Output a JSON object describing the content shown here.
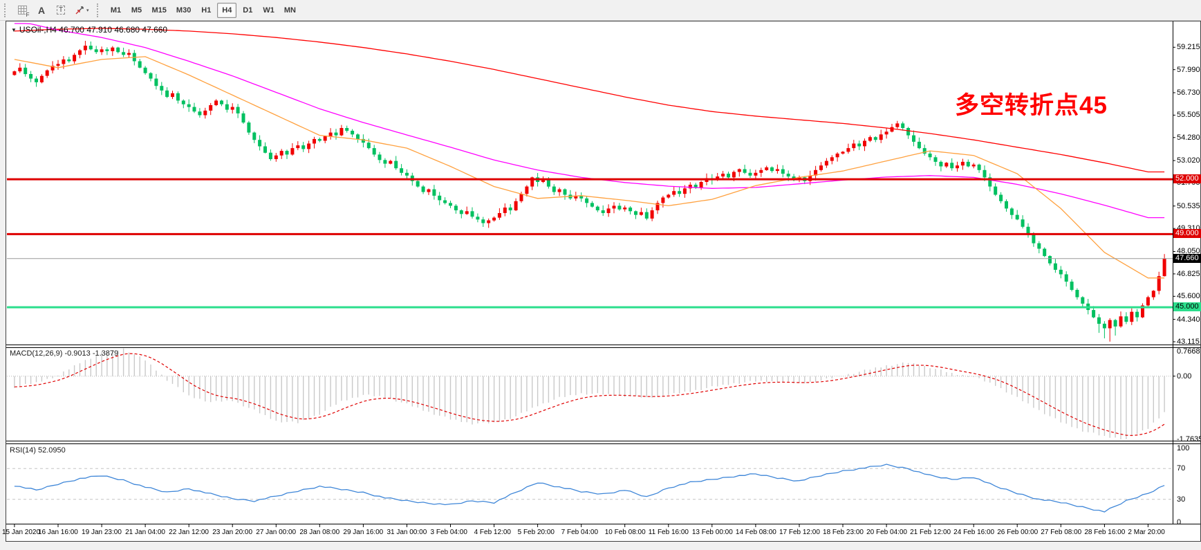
{
  "toolbar": {
    "f_label": "F",
    "a_label": "A",
    "t_label": "T",
    "caret": "▾",
    "timeframes": [
      "M1",
      "M5",
      "M15",
      "M30",
      "H1",
      "H4",
      "D1",
      "W1",
      "MN"
    ],
    "active_timeframe": "H4"
  },
  "chart": {
    "dropdown_arrow": "▼",
    "symbol_period": "USOil-,H4",
    "ohlc_text": "46.700 47.910 46.680 47.660"
  },
  "annotation": {
    "text": "多空转折点45",
    "color": "#FF0000"
  },
  "indicators": {
    "macd": {
      "label": "MACD(12,26,9) -0.9013 -1.3879",
      "axis_labels": [
        "0.7668",
        "0.00",
        "-1.7635"
      ]
    },
    "rsi": {
      "label": "RSI(14) 52.0950",
      "axis_labels": [
        "100",
        "70",
        "30",
        "0"
      ]
    }
  },
  "colors": {
    "candle_up": "#F00000",
    "candle_down": "#00C060",
    "ma_slow": "#FF0000",
    "ma_mid": "#FF00FF",
    "ma_fast": "#FFA13F",
    "level_red": "#DE0000",
    "level_green": "#2BDE8C",
    "current_line": "#9A9A9A",
    "macd_hist": "#C9C9C9",
    "macd_signal": "#E00000",
    "rsi_line": "#3E86D8",
    "panel_bg": "#FFFFFF",
    "chrome_bg": "#F1F1F1"
  },
  "chart_data": {
    "type": "candlestick",
    "symbol": "USOil",
    "period": "H4",
    "up_means": "red (Chinese convention)",
    "price_ticks": [
      "59.215",
      "57.990",
      "56.730",
      "55.505",
      "54.280",
      "53.020",
      "51.795",
      "50.535",
      "49.310",
      "48.050",
      "46.825",
      "45.600",
      "44.340",
      "43.115"
    ],
    "price_view_max": 60.55,
    "price_view_min": 43.0,
    "first_open": 57.7,
    "closes": [
      57.9,
      58.1,
      57.75,
      57.5,
      57.3,
      57.65,
      57.95,
      58.2,
      58.3,
      58.55,
      58.45,
      58.8,
      59.05,
      59.3,
      59.1,
      58.95,
      59.1,
      59.0,
      59.2,
      58.95,
      58.8,
      58.9,
      58.45,
      58.1,
      57.8,
      57.5,
      57.1,
      56.85,
      56.5,
      56.7,
      56.3,
      56.1,
      55.95,
      55.7,
      55.5,
      55.75,
      56.05,
      56.3,
      56.1,
      55.8,
      55.95,
      55.6,
      55.1,
      54.55,
      54.15,
      53.8,
      53.45,
      53.1,
      53.3,
      53.55,
      53.35,
      53.7,
      53.85,
      53.65,
      53.95,
      54.2,
      54.1,
      54.35,
      54.55,
      54.4,
      54.8,
      54.65,
      54.45,
      54.2,
      54.0,
      53.7,
      53.35,
      53.05,
      52.85,
      53.0,
      52.6,
      52.35,
      52.2,
      51.9,
      51.6,
      51.3,
      51.45,
      51.1,
      50.85,
      50.7,
      50.55,
      50.3,
      50.1,
      50.25,
      49.95,
      49.8,
      49.6,
      49.75,
      49.9,
      50.15,
      50.45,
      50.3,
      50.8,
      51.2,
      51.6,
      52.1,
      51.85,
      51.95,
      51.6,
      51.3,
      51.45,
      51.15,
      50.95,
      51.1,
      50.95,
      50.7,
      50.5,
      50.3,
      50.15,
      50.4,
      50.55,
      50.35,
      50.45,
      50.25,
      50.05,
      50.2,
      49.85,
      50.3,
      50.7,
      51.0,
      51.15,
      51.35,
      51.2,
      51.5,
      51.7,
      51.55,
      51.85,
      52.05,
      51.95,
      52.15,
      52.3,
      52.1,
      52.4,
      52.55,
      52.35,
      52.2,
      52.35,
      52.5,
      52.65,
      52.45,
      52.55,
      52.3,
      52.15,
      51.95,
      52.1,
      51.9,
      52.2,
      52.5,
      52.75,
      53.0,
      53.2,
      53.4,
      53.5,
      53.7,
      53.95,
      53.8,
      54.1,
      54.3,
      54.15,
      54.45,
      54.6,
      54.85,
      55.05,
      54.8,
      54.4,
      54.05,
      53.7,
      53.4,
      53.2,
      52.95,
      52.7,
      52.9,
      52.6,
      52.75,
      52.95,
      52.7,
      52.8,
      52.5,
      52.1,
      51.6,
      51.15,
      50.8,
      50.4,
      50.05,
      49.8,
      49.4,
      48.95,
      48.5,
      48.2,
      47.8,
      47.4,
      47.05,
      46.8,
      46.4,
      45.95,
      45.55,
      45.2,
      44.85,
      44.45,
      44.1,
      43.85,
      44.3,
      43.95,
      44.5,
      44.2,
      44.75,
      44.45,
      45.1,
      45.55,
      45.9,
      46.7,
      47.66
    ],
    "last_ohlc": [
      46.7,
      47.91,
      46.68,
      47.66
    ],
    "session_low": 43.12,
    "ma_slow_red": {
      "bar_step": 8,
      "values": [
        60.1,
        60.2,
        60.25,
        60.2,
        60.1,
        59.95,
        59.75,
        59.5,
        59.2,
        58.85,
        58.45,
        58.0,
        57.5,
        57.0,
        56.5,
        56.05,
        55.7,
        55.45,
        55.25,
        55.05,
        54.8,
        54.5,
        54.15,
        53.75,
        53.35,
        52.9,
        52.4
      ]
    },
    "ma_mid_magenta": {
      "bar_step": 8,
      "values": [
        60.7,
        60.15,
        59.75,
        59.2,
        58.45,
        57.65,
        56.75,
        55.85,
        55.1,
        54.42,
        53.75,
        53.05,
        52.5,
        52.1,
        51.82,
        51.62,
        51.5,
        51.55,
        51.75,
        51.95,
        52.12,
        52.2,
        52.1,
        51.72,
        51.2,
        50.58,
        49.9
      ]
    },
    "ma_fast_orange": {
      "bar_step": 8,
      "values": [
        58.55,
        58.1,
        58.55,
        58.7,
        57.7,
        56.6,
        55.5,
        54.4,
        54.15,
        53.7,
        52.7,
        51.6,
        50.95,
        51.1,
        50.85,
        50.55,
        50.9,
        51.65,
        52.1,
        52.45,
        53.0,
        53.55,
        53.3,
        52.3,
        50.4,
        48.0,
        46.6
      ]
    },
    "hlines": [
      {
        "value": 52.0,
        "label": "52.000",
        "color": "#DE0000",
        "label_fg": "#FFFFFF",
        "width": 3
      },
      {
        "value": 49.0,
        "label": "49.000",
        "color": "#DE0000",
        "label_fg": "#FFFFFF",
        "width": 3
      },
      {
        "value": 45.0,
        "label": "45.000",
        "color": "#2BDE8C",
        "label_fg": "#000000",
        "width": 3
      }
    ],
    "current_price": {
      "value": 47.66,
      "label": "47.660",
      "line_color": "#9A9A9A",
      "label_bg": "#000000",
      "label_fg": "#FFFFFF"
    },
    "macd": {
      "bar_step": 4,
      "max": 0.7668,
      "min": -1.7635,
      "main_last": -0.9013,
      "signal_last": -1.3879,
      "values": [
        -0.3,
        -0.18,
        0.02,
        0.38,
        0.65,
        0.77,
        0.45,
        -0.1,
        -0.55,
        -0.72,
        -0.68,
        -0.95,
        -1.25,
        -1.3,
        -1.05,
        -0.7,
        -0.52,
        -0.58,
        -0.78,
        -1.0,
        -1.2,
        -1.32,
        -1.3,
        -1.12,
        -0.82,
        -0.6,
        -0.48,
        -0.5,
        -0.55,
        -0.6,
        -0.52,
        -0.42,
        -0.3,
        -0.2,
        -0.14,
        -0.15,
        -0.2,
        -0.12,
        0.02,
        0.16,
        0.3,
        0.38,
        0.25,
        0.08,
        -0.02,
        -0.25,
        -0.6,
        -0.95,
        -1.28,
        -1.52,
        -1.68,
        -1.76,
        -1.45,
        -0.85
      ]
    },
    "rsi": {
      "bar_step": 4,
      "last": 52.095,
      "levels": [
        70,
        30
      ],
      "values": [
        48,
        42,
        50,
        57,
        61,
        55,
        46,
        39,
        44,
        37,
        31,
        28,
        34,
        41,
        47,
        43,
        39,
        32,
        28,
        25,
        23,
        28,
        26,
        39,
        52,
        46,
        40,
        37,
        42,
        33,
        45,
        52,
        56,
        60,
        63,
        58,
        54,
        61,
        67,
        71,
        75,
        70,
        61,
        56,
        59,
        47,
        38,
        30,
        26,
        20,
        14,
        28,
        38,
        52
      ]
    },
    "time_labels": [
      "15 Jan 2020",
      "16 Jan 16:00",
      "19 Jan 23:00",
      "21 Jan 04:00",
      "22 Jan 12:00",
      "23 Jan 20:00",
      "27 Jan 00:00",
      "28 Jan 08:00",
      "29 Jan 16:00",
      "31 Jan 00:00",
      "3 Feb 04:00",
      "4 Feb 12:00",
      "5 Feb 20:00",
      "7 Feb 04:00",
      "10 Feb 08:00",
      "11 Feb 16:00",
      "13 Feb 00:00",
      "14 Feb 08:00",
      "17 Feb 12:00",
      "18 Feb 23:00",
      "20 Feb 04:00",
      "21 Feb 12:00",
      "24 Feb 16:00",
      "26 Feb 00:00",
      "27 Feb 08:00",
      "28 Feb 16:00",
      "2 Mar 20:00"
    ]
  }
}
